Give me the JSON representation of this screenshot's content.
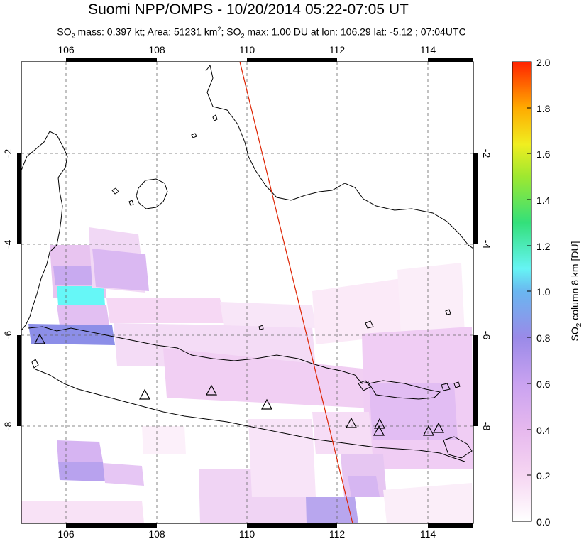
{
  "header": {
    "title": "Suomi NPP/OMPS - 10/20/2014 05:22-07:05 UT",
    "stats_part1": "SO",
    "stats_sub1": "2",
    "stats_part2": " mass: 0.397 kt; Area: 51231 km",
    "stats_sup": "2",
    "stats_part3": "; SO",
    "stats_sub2": "2",
    "stats_part4": " max: 1.00 DU at lon: 106.29 lat: -5.12 ; 07:04UTC"
  },
  "map": {
    "lon_ticks": [
      "106",
      "108",
      "110",
      "112",
      "114"
    ],
    "lat_ticks_left": [
      "-2",
      "-4",
      "-6",
      "-8"
    ],
    "lat_ticks_right": [
      "-2",
      "-4",
      "-6",
      "-8"
    ],
    "lon_range": [
      105,
      115
    ],
    "lat_range": [
      -10,
      0
    ]
  },
  "colorbar": {
    "ticks": [
      "2.0",
      "1.8",
      "1.6",
      "1.4",
      "1.2",
      "1.0",
      "0.8",
      "0.6",
      "0.4",
      "0.2",
      "0.0"
    ],
    "label_main": "SO",
    "label_sub": "2",
    "label_rest": " column 8 km [DU]",
    "range": [
      0,
      2
    ],
    "colors": [
      "#fffafa",
      "#f7c8f2",
      "#c8a0f0",
      "#8a8ae8",
      "#66ffff",
      "#33dd33",
      "#c8ee22",
      "#ffcc00",
      "#ff7700",
      "#ff2200"
    ]
  },
  "volcano_marker": "triangle"
}
